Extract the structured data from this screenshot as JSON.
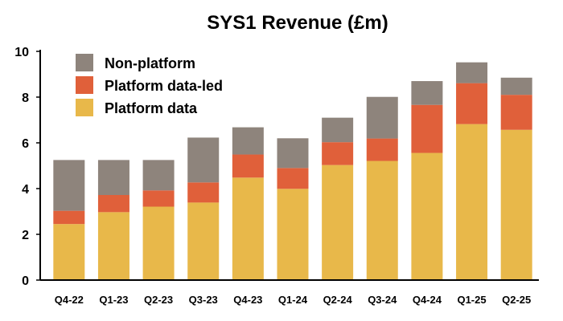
{
  "chart_data": {
    "type": "bar",
    "stacked": true,
    "title": "SYS1 Revenue (£m)",
    "xlabel": "",
    "ylabel": "",
    "ylim": [
      0,
      10
    ],
    "yticks": [
      0,
      2,
      4,
      6,
      8,
      10
    ],
    "grid": false,
    "legend_position": "top-left",
    "categories": [
      "Q4-22",
      "Q1-23",
      "Q2-23",
      "Q3-23",
      "Q4-23",
      "Q1-24",
      "Q2-24",
      "Q3-24",
      "Q4-24",
      "Q1-25",
      "Q2-25"
    ],
    "series": [
      {
        "name": "Platform data",
        "color": "#E8B84A",
        "values": [
          2.45,
          2.97,
          3.21,
          3.39,
          4.48,
          3.99,
          5.03,
          5.21,
          5.56,
          6.82,
          6.57
        ]
      },
      {
        "name": "Platform data-led",
        "color": "#E0603A",
        "values": [
          0.58,
          0.75,
          0.71,
          0.88,
          1.01,
          0.91,
          1.0,
          0.98,
          2.1,
          1.79,
          1.53
        ]
      },
      {
        "name": "Non-platform",
        "color": "#8E847C",
        "values": [
          2.22,
          1.53,
          1.33,
          1.96,
          1.19,
          1.3,
          1.07,
          1.82,
          1.04,
          0.91,
          0.75
        ]
      }
    ],
    "legend_order": [
      "Non-platform",
      "Platform data-led",
      "Platform data"
    ]
  }
}
